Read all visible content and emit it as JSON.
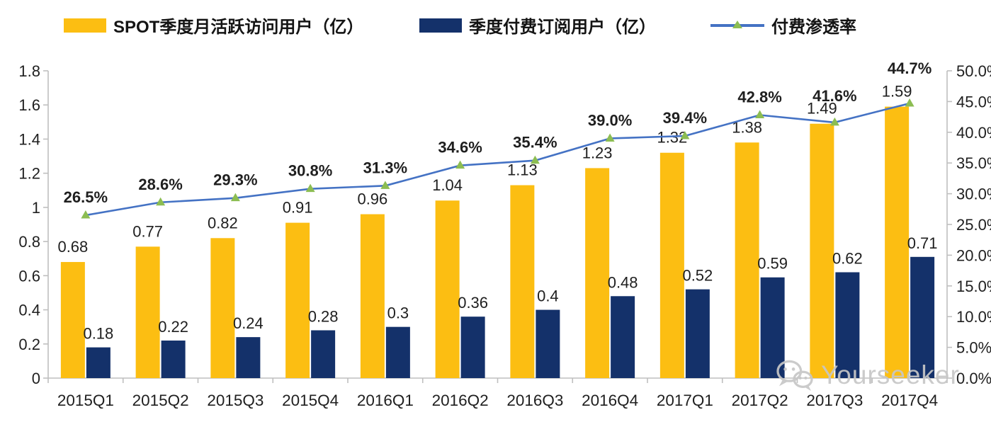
{
  "watermark": {
    "text": "Yourseeker",
    "icon": "wechat-icon",
    "color": "#c7c7c7"
  },
  "chart_data": {
    "type": "bar+line combo",
    "title": "",
    "categories": [
      "2015Q1",
      "2015Q2",
      "2015Q3",
      "2015Q4",
      "2016Q1",
      "2016Q2",
      "2016Q3",
      "2016Q4",
      "2017Q1",
      "2017Q2",
      "2017Q3",
      "2017Q4"
    ],
    "series": [
      {
        "name": "SPOT季度月活跃访问用户（亿）",
        "type": "bar",
        "axis": "left",
        "color": "#FCBE12",
        "values": [
          0.68,
          0.77,
          0.82,
          0.91,
          0.96,
          1.04,
          1.13,
          1.23,
          1.32,
          1.38,
          1.49,
          1.59
        ],
        "labels": [
          "0.68",
          "0.77",
          "0.82",
          "0.91",
          "0.96",
          "1.04",
          "1.13",
          "1.23",
          "1.32",
          "1.38",
          "1.49",
          "1.59"
        ]
      },
      {
        "name": "季度付费订阅用户（亿）",
        "type": "bar",
        "axis": "left",
        "color": "#14316A",
        "values": [
          0.18,
          0.22,
          0.24,
          0.28,
          0.3,
          0.36,
          0.4,
          0.48,
          0.52,
          0.59,
          0.62,
          0.71
        ],
        "labels": [
          "0.18",
          "0.22",
          "0.24",
          "0.28",
          "0.3",
          "0.36",
          "0.4",
          "0.48",
          "0.52",
          "0.59",
          "0.62",
          "0.71"
        ]
      },
      {
        "name": "付费渗透率",
        "type": "line",
        "axis": "right",
        "color": "#4472C4",
        "marker": "triangle-up",
        "marker_color": "#8CBD52",
        "values_percent": [
          26.5,
          28.6,
          29.3,
          30.8,
          31.3,
          34.6,
          35.4,
          39.0,
          39.4,
          42.8,
          41.6,
          44.7
        ],
        "labels": [
          "26.5%",
          "28.6%",
          "29.3%",
          "30.8%",
          "31.3%",
          "34.6%",
          "35.4%",
          "39.0%",
          "39.4%",
          "42.8%",
          "41.6%",
          "44.7%"
        ]
      }
    ],
    "left_axis": {
      "min": 0,
      "max": 1.8,
      "tick_labels": [
        "0",
        "0.2",
        "0.4",
        "0.6",
        "0.8",
        "1",
        "1.2",
        "1.4",
        "1.6",
        "1.8"
      ]
    },
    "right_axis": {
      "min": 0,
      "max": 50,
      "tick_labels": [
        "0.0%",
        "5.0%",
        "10.0%",
        "15.0%",
        "20.0%",
        "25.0%",
        "30.0%",
        "35.0%",
        "40.0%",
        "45.0%",
        "50.0%"
      ]
    },
    "grid": false,
    "legend_position": "top",
    "axis_color": "#BFBFBF",
    "text_color": "#1f1f1f"
  }
}
